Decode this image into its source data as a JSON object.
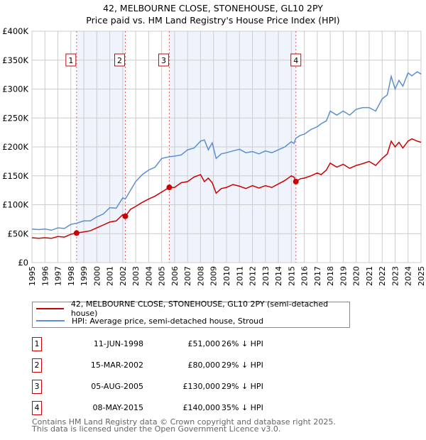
{
  "title_line1": "42, MELBOURNE CLOSE, STONEHOUSE, GL10 2PY",
  "title_line2": "Price paid vs. HM Land Registry's House Price Index (HPI)",
  "chart_data": {
    "type": "line",
    "xlim": [
      1995,
      2025
    ],
    "ylim": [
      0,
      400000
    ],
    "y_ticks": [
      0,
      50000,
      100000,
      150000,
      200000,
      250000,
      300000,
      350000,
      400000
    ],
    "y_tick_labels": [
      "£0",
      "£50K",
      "£100K",
      "£150K",
      "£200K",
      "£250K",
      "£300K",
      "£350K",
      "£400K"
    ],
    "x_ticks": [
      "1995",
      "1996",
      "1997",
      "1998",
      "1999",
      "2000",
      "2001",
      "2002",
      "2003",
      "2004",
      "2005",
      "2006",
      "2007",
      "2008",
      "2009",
      "2010",
      "2011",
      "2012",
      "2013",
      "2014",
      "2015",
      "2016",
      "2017",
      "2018",
      "2019",
      "2020",
      "2021",
      "2022",
      "2023",
      "2024",
      "2025"
    ],
    "grid": true,
    "colors": {
      "property": "#cc0000",
      "hpi": "#5b8fd0",
      "shade": "#eef3fc",
      "vline": "#e06060"
    },
    "shaded_ranges": [
      [
        1998.44,
        2002.2
      ],
      [
        2005.59,
        2015.35
      ]
    ],
    "series": [
      {
        "name": "42, MELBOURNE CLOSE, STONEHOUSE, GL10 2PY (semi-detached house)",
        "color": "#cc0000",
        "x": [
          1995,
          1995.5,
          1996,
          1996.5,
          1997,
          1997.5,
          1998,
          1998.44,
          1999,
          1999.5,
          2000,
          2000.5,
          2001,
          2001.5,
          2002,
          2002.2,
          2002.6,
          2003,
          2003.5,
          2004,
          2004.5,
          2005,
          2005.59,
          2006,
          2006.5,
          2007,
          2007.5,
          2008,
          2008.3,
          2008.6,
          2008.9,
          2009.2,
          2009.6,
          2010,
          2010.5,
          2011,
          2011.5,
          2012,
          2012.5,
          2013,
          2013.5,
          2014,
          2014.5,
          2015,
          2015.2,
          2015.35,
          2015.7,
          2016,
          2016.5,
          2017,
          2017.3,
          2017.7,
          2018,
          2018.5,
          2019,
          2019.5,
          2020,
          2020.5,
          2021,
          2021.5,
          2022,
          2022.4,
          2022.7,
          2023,
          2023.3,
          2023.6,
          2024,
          2024.3,
          2024.7,
          2025
        ],
        "y": [
          43000,
          42000,
          43000,
          42000,
          45000,
          44000,
          49000,
          51000,
          53000,
          55000,
          60000,
          65000,
          70000,
          72000,
          83000,
          80000,
          92000,
          97000,
          104000,
          110000,
          115000,
          122000,
          130000,
          130000,
          138000,
          140000,
          148000,
          152000,
          140000,
          146000,
          138000,
          120000,
          128000,
          130000,
          135000,
          132000,
          128000,
          133000,
          129000,
          133000,
          130000,
          136000,
          142000,
          150000,
          148000,
          140000,
          145000,
          146000,
          150000,
          155000,
          152000,
          160000,
          172000,
          165000,
          170000,
          163000,
          168000,
          171000,
          175000,
          168000,
          180000,
          188000,
          210000,
          200000,
          208000,
          198000,
          210000,
          214000,
          210000,
          208000
        ]
      },
      {
        "name": "HPI: Average price, semi-detached house, Stroud",
        "color": "#5b8fd0",
        "x": [
          1995,
          1995.5,
          1996,
          1996.5,
          1997,
          1997.5,
          1998,
          1998.44,
          1999,
          1999.5,
          2000,
          2000.5,
          2001,
          2001.5,
          2002,
          2002.2,
          2002.6,
          2003,
          2003.5,
          2004,
          2004.5,
          2005,
          2005.59,
          2006,
          2006.5,
          2007,
          2007.5,
          2008,
          2008.3,
          2008.6,
          2008.9,
          2009.2,
          2009.6,
          2010,
          2010.5,
          2011,
          2011.5,
          2012,
          2012.5,
          2013,
          2013.5,
          2014,
          2014.5,
          2015,
          2015.2,
          2015.35,
          2015.7,
          2016,
          2016.5,
          2017,
          2017.3,
          2017.7,
          2018,
          2018.5,
          2019,
          2019.5,
          2020,
          2020.5,
          2021,
          2021.5,
          2022,
          2022.4,
          2022.7,
          2023,
          2023.3,
          2023.6,
          2024,
          2024.3,
          2024.7,
          2025
        ],
        "y": [
          58000,
          57000,
          58000,
          56000,
          60000,
          59000,
          66000,
          68000,
          72000,
          72000,
          79000,
          84000,
          95000,
          94000,
          112000,
          110000,
          125000,
          140000,
          152000,
          160000,
          165000,
          180000,
          183000,
          184000,
          186000,
          195000,
          198000,
          210000,
          212000,
          195000,
          207000,
          180000,
          188000,
          190000,
          193000,
          196000,
          190000,
          192000,
          188000,
          193000,
          190000,
          195000,
          200000,
          209000,
          206000,
          215000,
          220000,
          222000,
          230000,
          235000,
          240000,
          245000,
          262000,
          255000,
          262000,
          255000,
          265000,
          268000,
          268000,
          262000,
          283000,
          290000,
          322000,
          300000,
          315000,
          305000,
          328000,
          323000,
          330000,
          326000
        ]
      }
    ],
    "markers": [
      {
        "label": "1",
        "x": 1998.44,
        "y": 51000
      },
      {
        "label": "2",
        "x": 2002.2,
        "y": 80000
      },
      {
        "label": "3",
        "x": 2005.59,
        "y": 130000
      },
      {
        "label": "4",
        "x": 2015.35,
        "y": 140000
      }
    ]
  },
  "legend": {
    "property": "42, MELBOURNE CLOSE, STONEHOUSE, GL10 2PY (semi-detached house)",
    "hpi": "HPI: Average price, semi-detached house, Stroud"
  },
  "transactions": [
    {
      "num": "1",
      "date": "11-JUN-1998",
      "price": "£51,000",
      "hpi": "26% ↓ HPI"
    },
    {
      "num": "2",
      "date": "15-MAR-2002",
      "price": "£80,000",
      "hpi": "29% ↓ HPI"
    },
    {
      "num": "3",
      "date": "05-AUG-2005",
      "price": "£130,000",
      "hpi": "29% ↓ HPI"
    },
    {
      "num": "4",
      "date": "08-MAY-2015",
      "price": "£140,000",
      "hpi": "35% ↓ HPI"
    }
  ],
  "footer_line1": "Contains HM Land Registry data © Crown copyright and database right 2025.",
  "footer_line2": "This data is licensed under the Open Government Licence v3.0."
}
